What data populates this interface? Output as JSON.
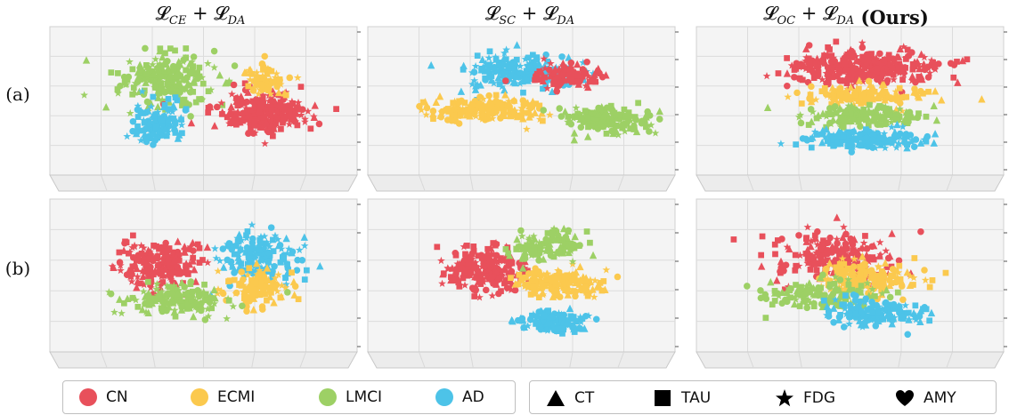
{
  "figure": {
    "columns": [
      {
        "title_main": "𝓛",
        "title_sub1": "CE",
        "title_plus": " + ",
        "title_main2": "𝓛",
        "title_sub2": "DA",
        "title_suffix": ""
      },
      {
        "title_main": "𝓛",
        "title_sub1": "SC",
        "title_plus": " + ",
        "title_main2": "𝓛",
        "title_sub2": "DA",
        "title_suffix": ""
      },
      {
        "title_main": "𝓛",
        "title_sub1": "OC",
        "title_plus": " + ",
        "title_main2": "𝓛",
        "title_sub2": "DA",
        "title_suffix": " (Ours)"
      }
    ],
    "rows": [
      {
        "label": "(a)"
      },
      {
        "label": "(b)"
      }
    ]
  },
  "legend_classes": [
    {
      "label": "CN",
      "color": "#e8505b"
    },
    {
      "label": "ECMI",
      "color": "#fbc94e"
    },
    {
      "label": "LMCI",
      "color": "#9dd065"
    },
    {
      "label": "AD",
      "color": "#4dc3e8"
    }
  ],
  "legend_modalities": [
    {
      "label": "CT",
      "icon": "triangle-icon"
    },
    {
      "label": "TAU",
      "icon": "square-icon"
    },
    {
      "label": "FDG",
      "icon": "star-icon"
    },
    {
      "label": "AMY",
      "icon": "heart-icon"
    }
  ],
  "chart_data": [
    {
      "type": "scatter",
      "panel": "a-1",
      "row": "(a)",
      "title": "𝓛CE + 𝓛DA",
      "clusters": [
        {
          "class": "LMCI",
          "cx": 0.38,
          "cy": 0.36,
          "sx": 0.14,
          "sy": 0.16,
          "n": 220
        },
        {
          "class": "CN",
          "cx": 0.68,
          "cy": 0.58,
          "sx": 0.14,
          "sy": 0.12,
          "n": 260
        },
        {
          "class": "ECMI",
          "cx": 0.7,
          "cy": 0.36,
          "sx": 0.07,
          "sy": 0.1,
          "n": 70
        },
        {
          "class": "AD",
          "cx": 0.35,
          "cy": 0.66,
          "sx": 0.08,
          "sy": 0.12,
          "n": 120
        }
      ]
    },
    {
      "type": "scatter",
      "panel": "a-2",
      "row": "(a)",
      "title": "𝓛SC + 𝓛DA",
      "clusters": [
        {
          "class": "AD",
          "cx": 0.5,
          "cy": 0.3,
          "sx": 0.17,
          "sy": 0.1,
          "n": 190
        },
        {
          "class": "CN",
          "cx": 0.65,
          "cy": 0.33,
          "sx": 0.11,
          "sy": 0.07,
          "n": 110
        },
        {
          "class": "ECMI",
          "cx": 0.4,
          "cy": 0.56,
          "sx": 0.16,
          "sy": 0.07,
          "n": 190
        },
        {
          "class": "LMCI",
          "cx": 0.77,
          "cy": 0.62,
          "sx": 0.12,
          "sy": 0.09,
          "n": 160
        }
      ]
    },
    {
      "type": "scatter",
      "panel": "a-3",
      "row": "(a)",
      "title": "𝓛OC + 𝓛DA (Ours)",
      "clusters": [
        {
          "class": "CN",
          "cx": 0.55,
          "cy": 0.27,
          "sx": 0.22,
          "sy": 0.11,
          "n": 320
        },
        {
          "class": "ECMI",
          "cx": 0.55,
          "cy": 0.46,
          "sx": 0.18,
          "sy": 0.06,
          "n": 140
        },
        {
          "class": "LMCI",
          "cx": 0.55,
          "cy": 0.6,
          "sx": 0.17,
          "sy": 0.06,
          "n": 160
        },
        {
          "class": "AD",
          "cx": 0.55,
          "cy": 0.76,
          "sx": 0.17,
          "sy": 0.06,
          "n": 180
        }
      ]
    },
    {
      "type": "scatter",
      "panel": "b-1",
      "row": "(b)",
      "title": "𝓛CE + 𝓛DA",
      "clusters": [
        {
          "class": "CN",
          "cx": 0.36,
          "cy": 0.42,
          "sx": 0.12,
          "sy": 0.14,
          "n": 200
        },
        {
          "class": "AD",
          "cx": 0.68,
          "cy": 0.38,
          "sx": 0.12,
          "sy": 0.14,
          "n": 150
        },
        {
          "class": "ECMI",
          "cx": 0.68,
          "cy": 0.58,
          "sx": 0.1,
          "sy": 0.1,
          "n": 110
        },
        {
          "class": "LMCI",
          "cx": 0.42,
          "cy": 0.66,
          "sx": 0.15,
          "sy": 0.1,
          "n": 160
        }
      ]
    },
    {
      "type": "scatter",
      "panel": "b-2",
      "row": "(b)",
      "title": "𝓛SC + 𝓛DA",
      "clusters": [
        {
          "class": "CN",
          "cx": 0.38,
          "cy": 0.46,
          "sx": 0.12,
          "sy": 0.13,
          "n": 220
        },
        {
          "class": "ECMI",
          "cx": 0.62,
          "cy": 0.55,
          "sx": 0.12,
          "sy": 0.09,
          "n": 170
        },
        {
          "class": "LMCI",
          "cx": 0.58,
          "cy": 0.3,
          "sx": 0.11,
          "sy": 0.09,
          "n": 110
        },
        {
          "class": "AD",
          "cx": 0.6,
          "cy": 0.8,
          "sx": 0.1,
          "sy": 0.06,
          "n": 120
        }
      ]
    },
    {
      "type": "scatter",
      "panel": "b-3",
      "row": "(b)",
      "title": "𝓛OC + 𝓛DA (Ours)",
      "clusters": [
        {
          "class": "CN",
          "cx": 0.45,
          "cy": 0.38,
          "sx": 0.18,
          "sy": 0.14,
          "n": 200
        },
        {
          "class": "ECMI",
          "cx": 0.55,
          "cy": 0.52,
          "sx": 0.16,
          "sy": 0.1,
          "n": 160
        },
        {
          "class": "LMCI",
          "cx": 0.4,
          "cy": 0.62,
          "sx": 0.16,
          "sy": 0.08,
          "n": 130
        },
        {
          "class": "AD",
          "cx": 0.58,
          "cy": 0.74,
          "sx": 0.14,
          "sy": 0.08,
          "n": 150
        }
      ]
    }
  ]
}
